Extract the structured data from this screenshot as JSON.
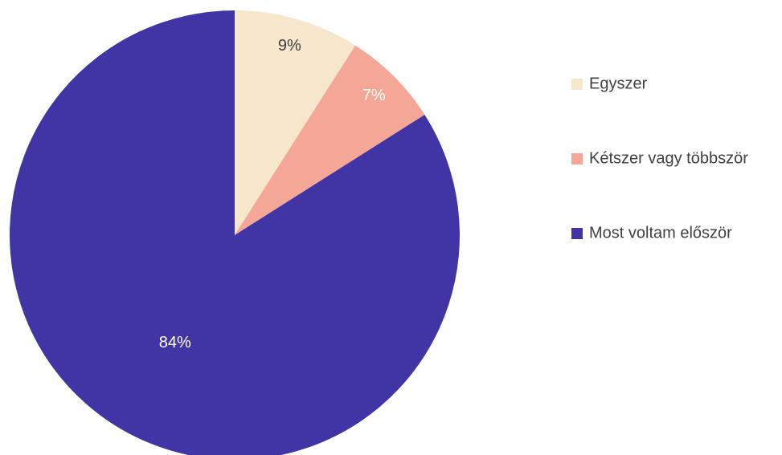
{
  "chart_data": {
    "type": "pie",
    "categories": [
      "Egyszer",
      "Kétszer vagy többször",
      "Most voltam először"
    ],
    "values": [
      9,
      7,
      84
    ],
    "value_labels": [
      "9%",
      "7%",
      "84%"
    ],
    "colors": [
      "#f5e6cc",
      "#f5a797",
      "#4134a4"
    ],
    "legend": "right"
  }
}
